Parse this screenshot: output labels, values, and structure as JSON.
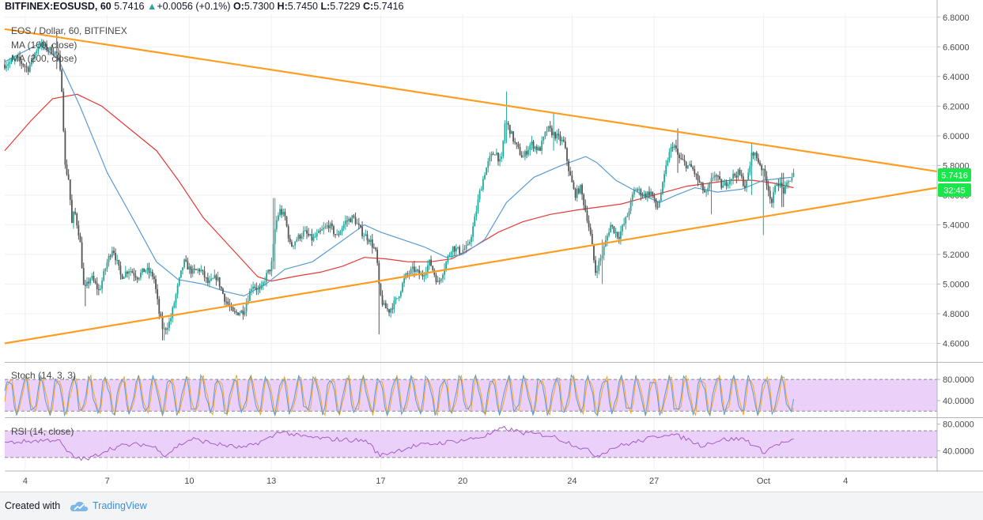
{
  "header": {
    "symbol": "BITFINEX:EOSUSD, 60",
    "last": "5.7416",
    "change": "+0.0056 (+0.1%)",
    "o_label": "O:",
    "o": "5.7300",
    "h_label": "H:",
    "h": "5.7450",
    "l_label": "L:",
    "l": "5.7229",
    "c_label": "C:",
    "c": "5.7416"
  },
  "legend": {
    "title": "EOS / Dollar, 60, BITFINEX",
    "ma100": "MA (100, close)",
    "ma200": "MA (200, close)"
  },
  "price_badge": {
    "value": "5.7416",
    "countdown": "32:45"
  },
  "footer": {
    "created_with": "Created with",
    "brand": "TradingView"
  },
  "colors": {
    "trendline": "#ff9d22",
    "ma100": "#5b9bd5",
    "ma200": "#e53935",
    "candle_up": "#26a69a",
    "candle_down": "#555555",
    "badge": "#19e64a",
    "osc_fill": "#e8c8f8",
    "osc_line": "#a35ec8"
  },
  "chart_data": [
    {
      "type": "candlestick",
      "title": "EOS / Dollar, 60, BITFINEX",
      "ylim": [
        4.48,
        6.82
      ],
      "y_ticks": [
        "4.6000",
        "4.8000",
        "5.0000",
        "5.2000",
        "5.4000",
        "5.6000",
        "5.8000",
        "6.0000",
        "6.2000",
        "6.4000",
        "6.6000",
        "6.8000"
      ],
      "x_ticks": [
        {
          "label": "4",
          "day": 0
        },
        {
          "label": "7",
          "day": 3
        },
        {
          "label": "10",
          "day": 6
        },
        {
          "label": "13",
          "day": 9
        },
        {
          "label": "17",
          "day": 13
        },
        {
          "label": "20",
          "day": 16
        },
        {
          "label": "24",
          "day": 20
        },
        {
          "label": "27",
          "day": 23
        },
        {
          "label": "Oct",
          "day": 27
        },
        {
          "label": "4",
          "day": 30
        }
      ],
      "xlim_days": [
        -0.75,
        33.35
      ],
      "last_day": 28.1,
      "price_path": [
        [
          -0.75,
          6.48
        ],
        [
          -0.3,
          6.52
        ],
        [
          0.1,
          6.45
        ],
        [
          0.5,
          6.62
        ],
        [
          0.9,
          6.58
        ],
        [
          1.2,
          6.55
        ],
        [
          1.35,
          6.3
        ],
        [
          1.45,
          5.8
        ],
        [
          1.6,
          5.7
        ],
        [
          1.7,
          5.4
        ],
        [
          1.8,
          5.5
        ],
        [
          2.0,
          5.3
        ],
        [
          2.15,
          4.95
        ],
        [
          2.4,
          5.05
        ],
        [
          2.7,
          4.95
        ],
        [
          3.0,
          5.15
        ],
        [
          3.2,
          5.25
        ],
        [
          3.5,
          5.05
        ],
        [
          3.8,
          5.1
        ],
        [
          4.1,
          5.05
        ],
        [
          4.4,
          5.1
        ],
        [
          4.7,
          5.05
        ],
        [
          4.9,
          4.8
        ],
        [
          5.05,
          4.68
        ],
        [
          5.3,
          4.75
        ],
        [
          5.6,
          5.0
        ],
        [
          5.8,
          5.15
        ],
        [
          6.1,
          5.08
        ],
        [
          6.4,
          5.1
        ],
        [
          6.7,
          5.0
        ],
        [
          7.0,
          5.05
        ],
        [
          7.3,
          4.9
        ],
        [
          7.6,
          4.8
        ],
        [
          8.0,
          4.82
        ],
        [
          8.3,
          5.0
        ],
        [
          8.6,
          4.95
        ],
        [
          8.8,
          5.05
        ],
        [
          9.0,
          5.12
        ],
        [
          9.15,
          5.4
        ],
        [
          9.3,
          5.5
        ],
        [
          9.5,
          5.45
        ],
        [
          9.7,
          5.25
        ],
        [
          9.9,
          5.3
        ],
        [
          10.2,
          5.35
        ],
        [
          10.5,
          5.3
        ],
        [
          10.8,
          5.35
        ],
        [
          11.1,
          5.4
        ],
        [
          11.4,
          5.32
        ],
        [
          11.7,
          5.42
        ],
        [
          12.0,
          5.45
        ],
        [
          12.3,
          5.35
        ],
        [
          12.6,
          5.3
        ],
        [
          12.85,
          5.2
        ],
        [
          12.95,
          4.95
        ],
        [
          13.1,
          4.85
        ],
        [
          13.3,
          4.82
        ],
        [
          13.6,
          4.9
        ],
        [
          13.9,
          5.05
        ],
        [
          14.2,
          5.1
        ],
        [
          14.5,
          5.05
        ],
        [
          14.8,
          5.15
        ],
        [
          15.1,
          5.0
        ],
        [
          15.3,
          5.1
        ],
        [
          15.6,
          5.25
        ],
        [
          15.9,
          5.22
        ],
        [
          16.2,
          5.25
        ],
        [
          16.4,
          5.4
        ],
        [
          16.6,
          5.6
        ],
        [
          16.8,
          5.75
        ],
        [
          17.0,
          5.85
        ],
        [
          17.2,
          5.9
        ],
        [
          17.4,
          5.8
        ],
        [
          17.55,
          6.1
        ],
        [
          17.7,
          6.05
        ],
        [
          17.9,
          5.95
        ],
        [
          18.2,
          5.85
        ],
        [
          18.5,
          5.95
        ],
        [
          18.8,
          5.9
        ],
        [
          19.1,
          6.05
        ],
        [
          19.4,
          6.0
        ],
        [
          19.7,
          5.95
        ],
        [
          19.9,
          5.75
        ],
        [
          20.1,
          5.6
        ],
        [
          20.3,
          5.65
        ],
        [
          20.55,
          5.45
        ],
        [
          20.7,
          5.3
        ],
        [
          20.85,
          5.08
        ],
        [
          21.1,
          5.2
        ],
        [
          21.4,
          5.4
        ],
        [
          21.7,
          5.32
        ],
        [
          22.0,
          5.45
        ],
        [
          22.3,
          5.65
        ],
        [
          22.6,
          5.6
        ],
        [
          22.9,
          5.62
        ],
        [
          23.1,
          5.5
        ],
        [
          23.3,
          5.65
        ],
        [
          23.5,
          5.85
        ],
        [
          23.7,
          5.95
        ],
        [
          23.9,
          5.85
        ],
        [
          24.2,
          5.8
        ],
        [
          24.4,
          5.78
        ],
        [
          24.6,
          5.7
        ],
        [
          24.9,
          5.6
        ],
        [
          25.2,
          5.75
        ],
        [
          25.5,
          5.65
        ],
        [
          25.8,
          5.72
        ],
        [
          26.1,
          5.75
        ],
        [
          26.35,
          5.65
        ],
        [
          26.6,
          5.9
        ],
        [
          26.9,
          5.8
        ],
        [
          27.1,
          5.7
        ],
        [
          27.3,
          5.55
        ],
        [
          27.5,
          5.7
        ],
        [
          27.75,
          5.62
        ],
        [
          28.0,
          5.72
        ],
        [
          28.1,
          5.74
        ]
      ],
      "extremes": [
        [
          1.15,
          6.7,
          6.45
        ],
        [
          2.2,
          5.02,
          4.85
        ],
        [
          5.05,
          4.74,
          4.62
        ],
        [
          9.1,
          5.58,
          5.1
        ],
        [
          12.95,
          5.1,
          4.66
        ],
        [
          17.6,
          6.3,
          5.95
        ],
        [
          19.3,
          6.15,
          5.9
        ],
        [
          21.1,
          5.3,
          5.0
        ],
        [
          23.85,
          6.05,
          5.75
        ],
        [
          25.1,
          5.75,
          5.47
        ],
        [
          26.55,
          5.95,
          5.6
        ],
        [
          27.0,
          5.7,
          5.33
        ],
        [
          27.7,
          5.75,
          5.52
        ]
      ],
      "ma100_path": [
        [
          -0.75,
          6.5
        ],
        [
          0.5,
          6.62
        ],
        [
          1.2,
          6.52
        ],
        [
          2.0,
          6.2
        ],
        [
          3.0,
          5.75
        ],
        [
          4.0,
          5.42
        ],
        [
          4.8,
          5.15
        ],
        [
          5.6,
          5.03
        ],
        [
          6.5,
          5.0
        ],
        [
          7.3,
          4.95
        ],
        [
          8.0,
          4.92
        ],
        [
          8.8,
          5.0
        ],
        [
          9.5,
          5.1
        ],
        [
          10.5,
          5.15
        ],
        [
          11.5,
          5.28
        ],
        [
          12.4,
          5.4
        ],
        [
          13.0,
          5.35
        ],
        [
          13.8,
          5.3
        ],
        [
          14.6,
          5.25
        ],
        [
          15.4,
          5.18
        ],
        [
          16.0,
          5.2
        ],
        [
          16.8,
          5.3
        ],
        [
          17.6,
          5.55
        ],
        [
          18.6,
          5.72
        ],
        [
          19.6,
          5.8
        ],
        [
          20.5,
          5.86
        ],
        [
          20.9,
          5.82
        ],
        [
          21.6,
          5.7
        ],
        [
          22.6,
          5.6
        ],
        [
          23.2,
          5.55
        ],
        [
          23.8,
          5.6
        ],
        [
          24.5,
          5.65
        ],
        [
          25.3,
          5.62
        ],
        [
          26.2,
          5.64
        ],
        [
          27.0,
          5.7
        ],
        [
          28.0,
          5.72
        ]
      ],
      "ma200_path": [
        [
          -0.75,
          5.9
        ],
        [
          0.2,
          6.1
        ],
        [
          1.0,
          6.25
        ],
        [
          1.9,
          6.28
        ],
        [
          2.8,
          6.2
        ],
        [
          3.8,
          6.05
        ],
        [
          4.8,
          5.9
        ],
        [
          5.6,
          5.7
        ],
        [
          6.5,
          5.45
        ],
        [
          7.5,
          5.25
        ],
        [
          8.5,
          5.05
        ],
        [
          9.0,
          5.02
        ],
        [
          9.8,
          5.05
        ],
        [
          10.8,
          5.08
        ],
        [
          11.6,
          5.12
        ],
        [
          12.4,
          5.18
        ],
        [
          13.2,
          5.17
        ],
        [
          14.0,
          5.15
        ],
        [
          14.8,
          5.15
        ],
        [
          15.6,
          5.17
        ],
        [
          16.4,
          5.25
        ],
        [
          17.3,
          5.35
        ],
        [
          18.2,
          5.42
        ],
        [
          19.2,
          5.47
        ],
        [
          20.2,
          5.5
        ],
        [
          21.0,
          5.52
        ],
        [
          21.8,
          5.54
        ],
        [
          22.6,
          5.58
        ],
        [
          23.4,
          5.62
        ],
        [
          24.2,
          5.66
        ],
        [
          25.0,
          5.68
        ],
        [
          25.8,
          5.7
        ],
        [
          26.6,
          5.7
        ],
        [
          27.4,
          5.68
        ],
        [
          28.1,
          5.65
        ]
      ],
      "trendlines": [
        {
          "name": "upper",
          "points": [
            [
              -0.75,
              6.72
            ],
            [
              33.35,
              5.76
            ]
          ]
        },
        {
          "name": "lower",
          "points": [
            [
              -0.75,
              4.6
            ],
            [
              33.35,
              5.65
            ]
          ]
        }
      ]
    },
    {
      "type": "line",
      "title": "Stoch (14, 3, 3)",
      "ylim": [
        10,
        110
      ],
      "y_ticks": [
        "40.0000",
        "80.0000"
      ],
      "band": [
        20,
        80
      ],
      "cycles": 49,
      "series_colors": [
        "#f5a623",
        "#5b9bd5"
      ]
    },
    {
      "type": "line",
      "title": "RSI (14, close)",
      "ylim": [
        12,
        88
      ],
      "y_ticks": [
        "40.0000",
        "80.0000"
      ],
      "band": [
        30,
        70
      ],
      "rsi_path": [
        [
          -0.75,
          52
        ],
        [
          0.4,
          55
        ],
        [
          1.2,
          57
        ],
        [
          1.5,
          40
        ],
        [
          1.8,
          30
        ],
        [
          2.3,
          27
        ],
        [
          3.0,
          42
        ],
        [
          3.6,
          48
        ],
        [
          4.3,
          50
        ],
        [
          4.9,
          43
        ],
        [
          5.1,
          32
        ],
        [
          5.6,
          48
        ],
        [
          6.1,
          58
        ],
        [
          7.0,
          50
        ],
        [
          8.0,
          44
        ],
        [
          9.0,
          60
        ],
        [
          9.3,
          70
        ],
        [
          10.0,
          62
        ],
        [
          11.0,
          58
        ],
        [
          12.5,
          55
        ],
        [
          12.95,
          33
        ],
        [
          13.4,
          38
        ],
        [
          14.2,
          47
        ],
        [
          15.2,
          52
        ],
        [
          16.2,
          57
        ],
        [
          16.8,
          62
        ],
        [
          17.5,
          74
        ],
        [
          18.2,
          67
        ],
        [
          19.2,
          63
        ],
        [
          19.9,
          52
        ],
        [
          20.6,
          40
        ],
        [
          20.9,
          32
        ],
        [
          21.5,
          45
        ],
        [
          22.5,
          55
        ],
        [
          23.5,
          66
        ],
        [
          24.2,
          58
        ],
        [
          24.7,
          48
        ],
        [
          25.5,
          57
        ],
        [
          26.3,
          58
        ],
        [
          27.0,
          38
        ],
        [
          27.5,
          50
        ],
        [
          28.1,
          55
        ]
      ]
    }
  ]
}
